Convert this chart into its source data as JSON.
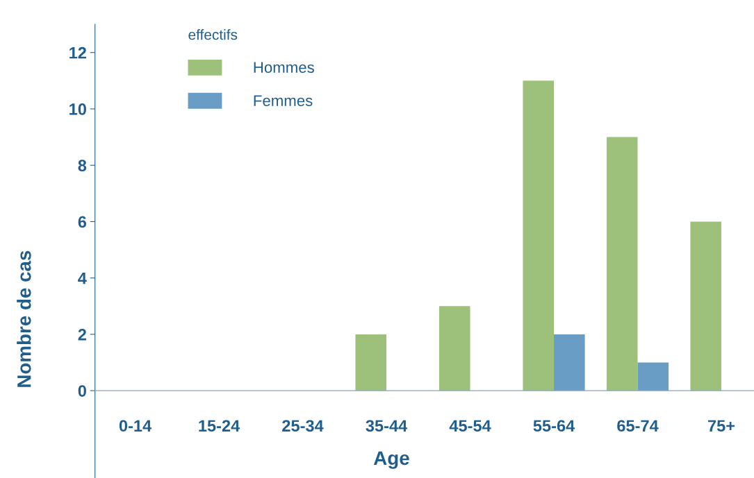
{
  "chart_data": {
    "type": "bar",
    "xlabel": "Age",
    "ylabel": "Nombre de cas",
    "legend_title": "effectifs",
    "categories": [
      "0-14",
      "15-24",
      "25-34",
      "35-44",
      "45-54",
      "55-64",
      "65-74",
      "75+"
    ],
    "series": [
      {
        "name": "Hommes",
        "color": "#9dc07a",
        "values": [
          0,
          0,
          0,
          2,
          3,
          11,
          9,
          6
        ]
      },
      {
        "name": "Femmes",
        "color": "#6a9dc6",
        "values": [
          0,
          0,
          0,
          0,
          0,
          2,
          1,
          0
        ]
      }
    ],
    "ylim": [
      -3.1,
      13
    ],
    "yticks": [
      0,
      2,
      4,
      6,
      8,
      10,
      12
    ],
    "grid": false,
    "legend": "top left"
  }
}
